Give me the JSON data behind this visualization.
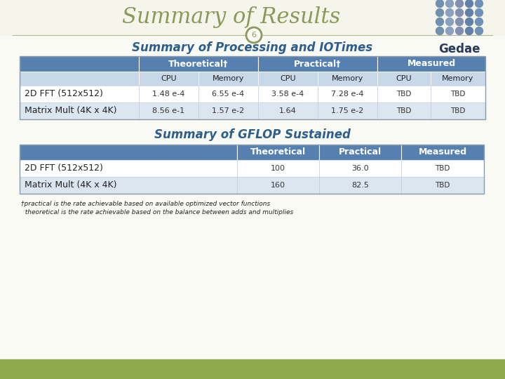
{
  "title": "Summary of Results",
  "slide_number": "6",
  "subtitle1": "Summary of Processing and IOTimes",
  "subtitle2": "Summary of GFLOP Sustained",
  "title_color": "#8a9a5a",
  "subtitle_color": "#2e5f8a",
  "bg_color": "#fafaf5",
  "bottom_bar_color": "#8faa4a",
  "header_bg_color": "#5580b0",
  "header_text_color": "#ffffff",
  "subheader_bg_color": "#c8d8e8",
  "row1_color": "#ffffff",
  "row2_color": "#dce6f0",
  "slide_number_circle_color": "#8a9a5a",
  "footnote_color": "#222222",
  "table1_subheaders": [
    "",
    "CPU",
    "Memory",
    "CPU",
    "Memory",
    "CPU",
    "Memory"
  ],
  "table1_rows": [
    [
      "2D FFT (512x512)",
      "1.48 e-4",
      "6.55 e-4",
      "3.58 e-4",
      "7.28 e-4",
      "TBD",
      "TBD"
    ],
    [
      "Matrix Mult (4K x 4K)",
      "8.56 e-1",
      "1.57 e-2",
      "1.64",
      "1.75 e-2",
      "TBD",
      "TBD"
    ]
  ],
  "table2_headers": [
    "",
    "Theoretical",
    "Practical",
    "Measured"
  ],
  "table2_rows": [
    [
      "2D FFT (512x512)",
      "100",
      "36.0",
      "TBD"
    ],
    [
      "Matrix Mult (4K x 4K)",
      "160",
      "82.5",
      "TBD"
    ]
  ],
  "footnote1": "†practical is the rate achievable based on available optimized vector functions",
  "footnote2": "  theoretical is the rate achievable based on the balance between adds and multiplies",
  "dot_colors_col": [
    "#7090b0",
    "#8aa0c0",
    "#8090b0",
    "#6080a8",
    "#7090b8"
  ],
  "dot_dark": "#2a3a5a"
}
